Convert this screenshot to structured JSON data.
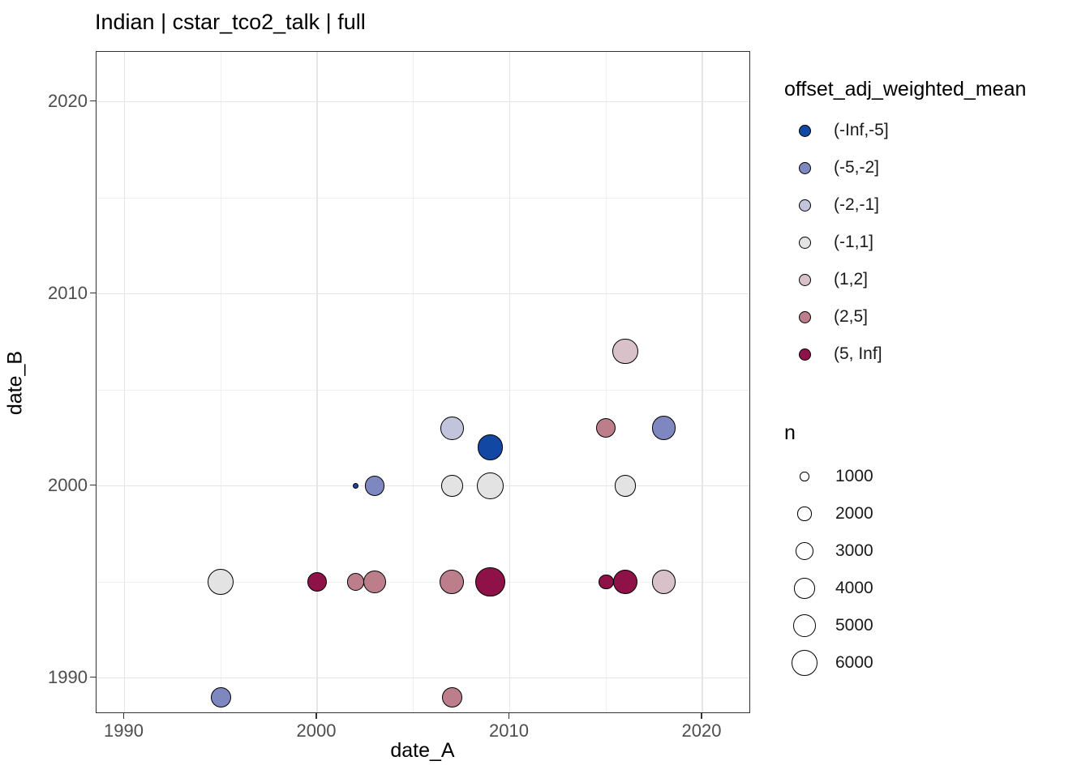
{
  "title": "Indian | cstar_tco2_talk | full",
  "chart_data": {
    "type": "scatter",
    "title": "Indian | cstar_tco2_talk | full",
    "xlabel": "date_A",
    "ylabel": "date_B",
    "x_ticks": [
      1990,
      2000,
      2010,
      2020
    ],
    "y_ticks": [
      1990,
      2000,
      2010,
      2020
    ],
    "xlim": [
      1988.5,
      2022.5
    ],
    "ylim": [
      1988.1,
      2022.6
    ],
    "grid": "major and minor, light gray on white, black panel border",
    "legend_position": "right",
    "color_legend": {
      "title": "offset_adj_weighted_mean",
      "entries": [
        {
          "label": "(-Inf,-5]",
          "color": "#1347a4"
        },
        {
          "label": "(-5,-2]",
          "color": "#7f87c0"
        },
        {
          "label": "(-2,-1]",
          "color": "#c1c4da"
        },
        {
          "label": "(-1,1]",
          "color": "#e3e3e3"
        },
        {
          "label": "(1,2]",
          "color": "#d9c1c9"
        },
        {
          "label": "(2,5]",
          "color": "#bd7e8c"
        },
        {
          "label": "(5, Inf]",
          "color": "#8e1247"
        }
      ]
    },
    "size_legend": {
      "title": "n",
      "entries": [
        1000,
        2000,
        3000,
        4000,
        5000,
        6000
      ]
    },
    "points": [
      {
        "date_A": 1995,
        "date_B": 1989,
        "bin": "(-5,-2]",
        "n": 3900
      },
      {
        "date_A": 2007,
        "date_B": 1989,
        "bin": "(2,5]",
        "n": 3900
      },
      {
        "date_A": 1995,
        "date_B": 1995,
        "bin": "(-1,1]",
        "n": 6000
      },
      {
        "date_A": 2000,
        "date_B": 1995,
        "bin": "(5, Inf]",
        "n": 3600
      },
      {
        "date_A": 2002,
        "date_B": 1995,
        "bin": "(2,5]",
        "n": 3000
      },
      {
        "date_A": 2003,
        "date_B": 1995,
        "bin": "(2,5]",
        "n": 4700
      },
      {
        "date_A": 2007,
        "date_B": 1995,
        "bin": "(2,5]",
        "n": 5300
      },
      {
        "date_A": 2009,
        "date_B": 1995,
        "bin": "(5, Inf]",
        "n": 7700
      },
      {
        "date_A": 2015,
        "date_B": 1995,
        "bin": "(5, Inf]",
        "n": 2300
      },
      {
        "date_A": 2016,
        "date_B": 1995,
        "bin": "(5, Inf]",
        "n": 5300
      },
      {
        "date_A": 2018,
        "date_B": 1995,
        "bin": "(1,2]",
        "n": 5300
      },
      {
        "date_A": 2002,
        "date_B": 2000,
        "bin": "(-Inf,-5]",
        "n": 500
      },
      {
        "date_A": 2003,
        "date_B": 2000,
        "bin": "(-5,-2]",
        "n": 3600
      },
      {
        "date_A": 2007,
        "date_B": 2000,
        "bin": "(-1,1]",
        "n": 4300
      },
      {
        "date_A": 2009,
        "date_B": 2000,
        "bin": "(-1,1]",
        "n": 6500
      },
      {
        "date_A": 2016,
        "date_B": 2000,
        "bin": "(-1,1]",
        "n": 4300
      },
      {
        "date_A": 2009,
        "date_B": 2002,
        "bin": "(-Inf,-5]",
        "n": 5800
      },
      {
        "date_A": 2007,
        "date_B": 2003,
        "bin": "(-2,-1]",
        "n": 4900
      },
      {
        "date_A": 2015,
        "date_B": 2003,
        "bin": "(2,5]",
        "n": 3600
      },
      {
        "date_A": 2018,
        "date_B": 2003,
        "bin": "(-5,-2]",
        "n": 5300
      },
      {
        "date_A": 2016,
        "date_B": 2007,
        "bin": "(1,2]",
        "n": 5800
      }
    ]
  }
}
